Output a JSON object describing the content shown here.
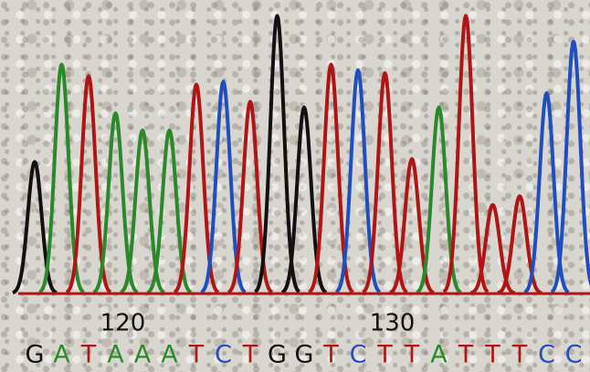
{
  "chart_data": {
    "type": "chromatogram",
    "x": [
      117,
      118,
      119,
      120,
      121,
      122,
      123,
      124,
      125,
      126,
      127,
      128,
      129,
      130,
      131,
      132,
      133,
      134,
      135,
      136,
      137
    ],
    "categories": [
      "G",
      "A",
      "T",
      "A",
      "A",
      "A",
      "T",
      "C",
      "T",
      "G",
      "G",
      "T",
      "C",
      "T",
      "T",
      "A",
      "T",
      "T",
      "T",
      "C",
      "C"
    ],
    "values": [
      46,
      80,
      76,
      63,
      57,
      57,
      73,
      74,
      67,
      97,
      65,
      80,
      78,
      77,
      47,
      65,
      97,
      31,
      34,
      70,
      88
    ],
    "colors": {
      "A": "#2a8a2a",
      "C": "#1f4fbf",
      "G": "#111111",
      "T": "#b01515"
    },
    "xlim": [
      116,
      138
    ],
    "ylim": [
      0,
      100
    ],
    "xticks": [
      120,
      130
    ]
  }
}
